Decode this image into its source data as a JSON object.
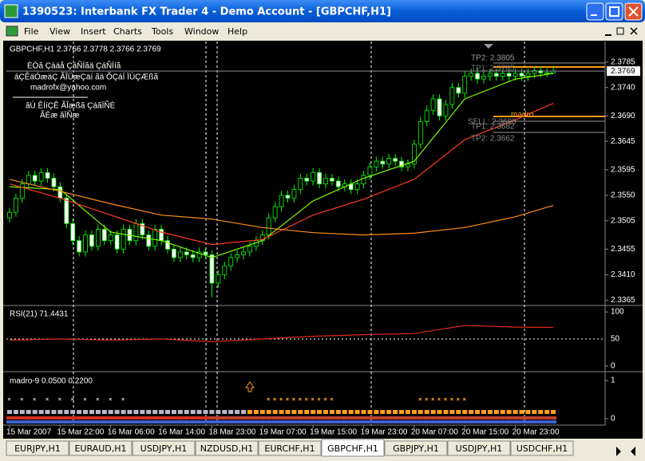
{
  "window": {
    "title": "1390523: Interbank FX Trader 4 - Demo Account - [GBPCHF,H1]"
  },
  "menu": [
    "File",
    "View",
    "Insert",
    "Charts",
    "Tools",
    "Window",
    "Help"
  ],
  "chart_data": [
    {
      "type": "candlestick",
      "title": "GBPCHF,H1  2.3766 2.3778 2.3766 2.3769",
      "up_color": "#000000",
      "down_color": "#ffffff",
      "wick_color": "#00ff00",
      "candles": [
        [
          2.351,
          2.3528,
          2.3502,
          2.352
        ],
        [
          2.352,
          2.3553,
          2.3512,
          2.3545
        ],
        [
          2.3545,
          2.3578,
          2.3537,
          2.357
        ],
        [
          2.357,
          2.3593,
          2.3562,
          2.3585
        ],
        [
          2.3585,
          2.3593,
          2.3567,
          2.3575
        ],
        [
          2.3575,
          2.3598,
          2.3567,
          2.359
        ],
        [
          2.359,
          2.3598,
          2.3572,
          2.358
        ],
        [
          2.358,
          2.3588,
          2.3557,
          2.3565
        ],
        [
          2.3565,
          2.3573,
          2.3537,
          2.3545
        ],
        [
          2.3545,
          2.3553,
          2.3492,
          2.35
        ],
        [
          2.35,
          2.3508,
          2.3462,
          2.347
        ],
        [
          2.347,
          2.3478,
          2.3442,
          2.345
        ],
        [
          2.345,
          2.3488,
          2.3442,
          2.348
        ],
        [
          2.348,
          2.3488,
          2.3452,
          2.346
        ],
        [
          2.346,
          2.3498,
          2.3452,
          2.349
        ],
        [
          2.349,
          2.3498,
          2.3462,
          2.347
        ],
        [
          2.347,
          2.3488,
          2.3462,
          2.348
        ],
        [
          2.348,
          2.3488,
          2.3447,
          2.3455
        ],
        [
          2.3455,
          2.3498,
          2.3447,
          2.349
        ],
        [
          2.349,
          2.3498,
          2.3462,
          2.347
        ],
        [
          2.347,
          2.3508,
          2.3462,
          2.35
        ],
        [
          2.35,
          2.3508,
          2.3472,
          2.348
        ],
        [
          2.348,
          2.3488,
          2.3452,
          2.346
        ],
        [
          2.346,
          2.3498,
          2.3452,
          2.349
        ],
        [
          2.349,
          2.3498,
          2.3462,
          2.347
        ],
        [
          2.347,
          2.3478,
          2.3447,
          2.3455
        ],
        [
          2.3455,
          2.3463,
          2.3432,
          2.344
        ],
        [
          2.344,
          2.3458,
          2.3432,
          2.345
        ],
        [
          2.345,
          2.3458,
          2.3437,
          2.3445
        ],
        [
          2.3445,
          2.3453,
          2.3432,
          2.344
        ],
        [
          2.344,
          2.3458,
          2.3432,
          2.345
        ],
        [
          2.345,
          2.3458,
          2.3437,
          2.3445
        ],
        [
          2.3445,
          2.3453,
          2.337,
          2.3395
        ],
        [
          2.3395,
          2.3418,
          2.3387,
          2.341
        ],
        [
          2.341,
          2.3433,
          2.3402,
          2.3425
        ],
        [
          2.3425,
          2.3448,
          2.3417,
          2.344
        ],
        [
          2.344,
          2.3453,
          2.3432,
          2.3445
        ],
        [
          2.3445,
          2.3458,
          2.3437,
          2.345
        ],
        [
          2.345,
          2.3468,
          2.3442,
          2.346
        ],
        [
          2.346,
          2.3478,
          2.3452,
          2.347
        ],
        [
          2.347,
          2.3488,
          2.3462,
          2.348
        ],
        [
          2.348,
          2.3518,
          2.3472,
          2.351
        ],
        [
          2.351,
          2.3538,
          2.3502,
          2.353
        ],
        [
          2.353,
          2.3558,
          2.3522,
          2.355
        ],
        [
          2.355,
          2.3558,
          2.3537,
          2.3545
        ],
        [
          2.3545,
          2.3568,
          2.3537,
          2.356
        ],
        [
          2.356,
          2.3588,
          2.3552,
          2.358
        ],
        [
          2.358,
          2.3588,
          2.3567,
          2.3575
        ],
        [
          2.3575,
          2.3598,
          2.3567,
          2.359
        ],
        [
          2.359,
          2.3598,
          2.3562,
          2.357
        ],
        [
          2.357,
          2.3588,
          2.3562,
          2.358
        ],
        [
          2.358,
          2.3588,
          2.3567,
          2.3575
        ],
        [
          2.3575,
          2.3583,
          2.3557,
          2.3565
        ],
        [
          2.3565,
          2.3578,
          2.3557,
          2.357
        ],
        [
          2.357,
          2.3578,
          2.3552,
          2.356
        ],
        [
          2.356,
          2.3578,
          2.3552,
          2.357
        ],
        [
          2.357,
          2.3593,
          2.3562,
          2.3585
        ],
        [
          2.3585,
          2.3608,
          2.3577,
          2.36
        ],
        [
          2.36,
          2.3618,
          2.3592,
          2.361
        ],
        [
          2.361,
          2.3618,
          2.3597,
          2.3605
        ],
        [
          2.3605,
          2.3623,
          2.3597,
          2.3615
        ],
        [
          2.3615,
          2.3623,
          2.3602,
          2.361
        ],
        [
          2.361,
          2.3618,
          2.3592,
          2.36
        ],
        [
          2.36,
          2.3613,
          2.3592,
          2.3605
        ],
        [
          2.3605,
          2.3648,
          2.3597,
          2.364
        ],
        [
          2.364,
          2.3688,
          2.3632,
          2.368
        ],
        [
          2.368,
          2.3708,
          2.3672,
          2.37
        ],
        [
          2.37,
          2.3728,
          2.3692,
          2.372
        ],
        [
          2.372,
          2.3728,
          2.3682,
          2.369
        ],
        [
          2.369,
          2.3718,
          2.3682,
          2.371
        ],
        [
          2.371,
          2.3748,
          2.3702,
          2.374
        ],
        [
          2.374,
          2.3748,
          2.3722,
          2.373
        ],
        [
          2.373,
          2.3768,
          2.3722,
          2.376
        ],
        [
          2.376,
          2.3773,
          2.3752,
          2.3765
        ],
        [
          2.3765,
          2.3773,
          2.3747,
          2.3755
        ],
        [
          2.3755,
          2.3768,
          2.3747,
          2.376
        ],
        [
          2.376,
          2.3773,
          2.3752,
          2.3765
        ],
        [
          2.3765,
          2.3773,
          2.3752,
          2.376
        ],
        [
          2.376,
          2.3773,
          2.3752,
          2.3765
        ],
        [
          2.3765,
          2.3773,
          2.3752,
          2.376
        ],
        [
          2.376,
          2.3773,
          2.3752,
          2.3765
        ],
        [
          2.3765,
          2.3773,
          2.3752,
          2.376
        ],
        [
          2.376,
          2.3773,
          2.3752,
          2.3765
        ],
        [
          2.3765,
          2.3778,
          2.3757,
          2.377
        ],
        [
          2.377,
          2.3778,
          2.3758,
          2.3766
        ],
        [
          2.3766,
          2.3774,
          2.3758,
          2.3766
        ],
        [
          2.3766,
          2.3778,
          2.3766,
          2.3769
        ]
      ],
      "ma_x": [
        0,
        8,
        16,
        24,
        32,
        40,
        48,
        56,
        64,
        72,
        80,
        86
      ],
      "lines": [
        {
          "color": "#7cfc00",
          "values": [
            2.3565,
            2.356,
            2.3485,
            2.347,
            2.344,
            2.347,
            2.354,
            2.358,
            2.361,
            2.372,
            2.3755,
            2.3765
          ]
        },
        {
          "color": "#ff3b1f",
          "values": [
            2.357,
            2.3545,
            2.3515,
            2.3485,
            2.3463,
            2.3472,
            2.3515,
            2.3543,
            2.3578,
            2.3648,
            2.3683,
            2.3712
          ]
        },
        {
          "color": "#ff8c1a",
          "values": [
            2.3578,
            2.3557,
            2.3535,
            2.3515,
            2.3508,
            2.3493,
            2.3484,
            2.348,
            2.3483,
            2.3493,
            2.3512,
            2.3532
          ]
        }
      ],
      "last_price": 2.3769,
      "ylim": [
        2.3357,
        2.3817
      ],
      "yticks": [
        2.3785,
        {
          "value": 2.374,
          "label": "2.3740"
        },
        {
          "value": 2.369,
          "label": "2.3690"
        },
        2.3645,
        2.3595,
        {
          "value": 2.355,
          "label": "2.3550"
        },
        2.3505,
        2.3455,
        {
          "value": 2.341,
          "label": "2.3410"
        },
        2.3365
      ],
      "xticks": [
        {
          "value": 0,
          "label": "15 Mar 2007"
        },
        {
          "value": 8,
          "label": "15 Mar 22:00"
        },
        {
          "value": 16,
          "label": "16 Mar 06:00"
        },
        {
          "value": 24,
          "label": "16 Mar 14:00"
        },
        {
          "value": 32,
          "label": "18 Mar 23:00"
        },
        {
          "value": 40,
          "label": "19 Mar 07:00"
        },
        {
          "value": 48,
          "label": "19 Mar 15:00"
        },
        {
          "value": 56,
          "label": "19 Mar 23:00"
        },
        {
          "value": 64,
          "label": "20 Mar 07:00"
        },
        {
          "value": 72,
          "label": "20 Mar 15:00"
        },
        {
          "value": 80,
          "label": "20 Mar 23:00"
        }
      ],
      "notes": [
        "ÈÓã Çááå ÇáÑÍãä ÇáÑÍíã",
        "áÇÊäÓæäÇ ÃÎÜæÇäí ãä ÕÇáÍ ÏÚÇÆßã",
        "madrofx@yahoo.com",
        "ãÚ ÊÍíÇÊ ÃÎæßã ÇáãÏÑÈ",
        "ÃÈæ ãÏÑæ"
      ],
      "annotations": [
        "TP2: 2.3805",
        "TP1: 2.3785",
        "madro",
        "SELL: 2.3690",
        "TP1: 2.3682",
        "TP2: 2.3662"
      ]
    },
    {
      "type": "line",
      "title": "RSI(21) 71.4431",
      "color": "#e0281e",
      "x": [
        0,
        8,
        16,
        24,
        32,
        40,
        48,
        56,
        64,
        72,
        80,
        86
      ],
      "values": [
        48,
        50,
        48,
        50,
        45,
        50,
        55,
        58,
        60,
        75,
        72,
        71.4431
      ],
      "ylim": [
        -9,
        109
      ],
      "yticks": [
        0,
        50,
        100
      ]
    },
    {
      "type": "indicator",
      "title": "madro-9 0.0500 0.2200",
      "ylim": [
        -0.17,
        1.21
      ],
      "yticks": [
        0,
        1
      ]
    }
  ],
  "tabs": [
    "EURJPY,H1",
    "EURAUD,H1",
    "USDJPY,H1",
    "NZDUSD,H1",
    "EURCHF,H1",
    "GBPCHF,H1",
    "GBPJPY,H1",
    "USDJPY,H1",
    "USDCHF,H1"
  ],
  "active_tab": 5
}
